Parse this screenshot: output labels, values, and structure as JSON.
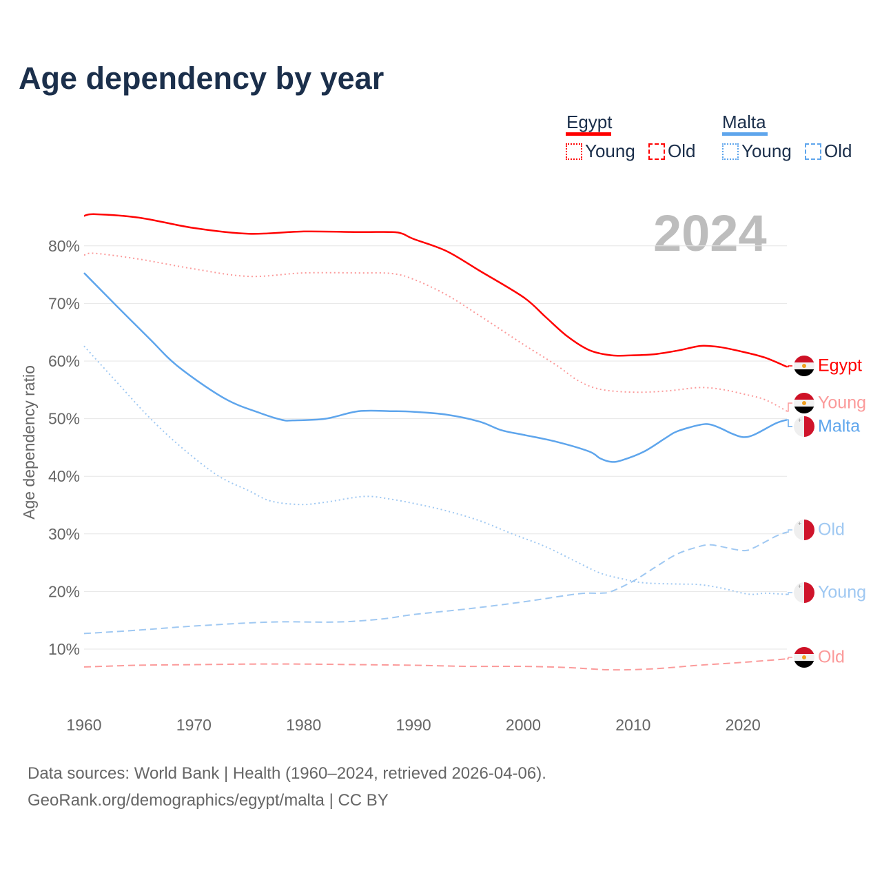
{
  "chart_data": {
    "type": "line",
    "title": "Age dependency by year",
    "highlight_year": "2024",
    "ylabel": "Age dependency ratio",
    "xlabel": "",
    "xlim": [
      1960,
      2024
    ],
    "ylim": [
      0,
      85
    ],
    "yticks": [
      10,
      20,
      30,
      40,
      50,
      60,
      70,
      80
    ],
    "ytick_labels": [
      "10%",
      "20%",
      "30%",
      "40%",
      "50%",
      "60%",
      "70%",
      "80%"
    ],
    "xticks": [
      1960,
      1970,
      1980,
      1990,
      2000,
      2010,
      2020
    ],
    "xtick_labels": [
      "1960",
      "1970",
      "1980",
      "1990",
      "2000",
      "2010",
      "2020"
    ],
    "grid": true,
    "legend": {
      "placement": "top-right",
      "groups": [
        {
          "country": "Egypt",
          "color": "#ff0000",
          "items": [
            "Young",
            "Old"
          ]
        },
        {
          "country": "Malta",
          "color": "#5ea5ec",
          "items": [
            "Young",
            "Old"
          ]
        }
      ]
    },
    "series": [
      {
        "name": "Egypt",
        "label": "Egypt",
        "country": "Egypt",
        "kind": "total",
        "color": "#ff0000",
        "dash": "solid",
        "x": [
          1960,
          1961,
          1965,
          1970,
          1975,
          1980,
          1985,
          1988,
          1989,
          1990,
          1993,
          1996,
          2000,
          2002,
          2004,
          2006,
          2008,
          2010,
          2012,
          2014,
          2016,
          2017,
          2018,
          2020,
          2022,
          2024
        ],
        "y": [
          85.2,
          85.5,
          84.9,
          83.1,
          82.1,
          82.5,
          82.4,
          82.4,
          82.1,
          81.2,
          79.1,
          75.7,
          71.1,
          67.7,
          64.3,
          61.9,
          61.0,
          61.0,
          61.2,
          61.8,
          62.6,
          62.6,
          62.4,
          61.6,
          60.6,
          59.0
        ]
      },
      {
        "name": "Egypt Young",
        "label": "Young",
        "country": "Egypt",
        "kind": "young",
        "color": "#fb9a9a",
        "dash": "dotted",
        "x": [
          1960,
          1961,
          1965,
          1970,
          1975,
          1980,
          1985,
          1988,
          1990,
          1993,
          1996,
          2000,
          2003,
          2005,
          2007,
          2010,
          2013,
          2016,
          2018,
          2020,
          2022,
          2024
        ],
        "y": [
          78.4,
          78.7,
          77.7,
          76.0,
          74.7,
          75.3,
          75.3,
          75.2,
          74.2,
          71.5,
          67.9,
          62.9,
          59.3,
          56.6,
          55.1,
          54.6,
          54.8,
          55.4,
          55.1,
          54.3,
          53.3,
          51.3
        ]
      },
      {
        "name": "Egypt Old",
        "label": "Old",
        "country": "Egypt",
        "kind": "old",
        "color": "#fb9a9a",
        "dash": "dashed",
        "x": [
          1960,
          1965,
          1970,
          1975,
          1980,
          1985,
          1990,
          1995,
          2000,
          2004,
          2008,
          2012,
          2016,
          2020,
          2024
        ],
        "y": [
          6.9,
          7.2,
          7.3,
          7.4,
          7.4,
          7.3,
          7.2,
          7.0,
          7.0,
          6.8,
          6.4,
          6.6,
          7.2,
          7.7,
          8.3
        ]
      },
      {
        "name": "Malta",
        "label": "Malta",
        "country": "Malta",
        "kind": "total",
        "color": "#5ea5ec",
        "dash": "solid",
        "x": [
          1960,
          1963,
          1966,
          1968.6,
          1972.8,
          1976,
          1978,
          1979,
          1982,
          1985,
          1988,
          1990,
          1993,
          1996,
          1998,
          2000,
          2003,
          2006,
          2007,
          2008,
          2009,
          2011,
          2013,
          2014,
          2016,
          2017,
          2018,
          2019,
          2020,
          2021,
          2023,
          2024
        ],
        "y": [
          75.3,
          69.5,
          63.8,
          59.0,
          53.5,
          51.0,
          49.8,
          49.7,
          50.0,
          51.3,
          51.3,
          51.2,
          50.7,
          49.5,
          48.0,
          47.2,
          46.0,
          44.3,
          43.1,
          42.5,
          42.8,
          44.3,
          46.7,
          47.8,
          48.9,
          49.0,
          48.3,
          47.4,
          46.8,
          47.2,
          49.2,
          49.8
        ]
      },
      {
        "name": "Malta Young",
        "label": "Young",
        "country": "Malta",
        "kind": "young",
        "color": "#9fc8f2",
        "dash": "dotted",
        "x": [
          1960,
          1963,
          1966,
          1969,
          1972.2,
          1975,
          1977,
          1979.7,
          1982,
          1985.5,
          1988,
          1990.5,
          1993,
          1996,
          1999,
          2002,
          2005,
          2007,
          2009,
          2011,
          2014,
          2016,
          2018,
          2020,
          2021,
          2022,
          2024
        ],
        "y": [
          62.6,
          56.3,
          50.1,
          44.8,
          40.1,
          37.5,
          35.7,
          35.1,
          35.5,
          36.5,
          36.0,
          35.1,
          34.0,
          32.3,
          30.0,
          27.8,
          25.0,
          23.2,
          22.2,
          21.5,
          21.3,
          21.2,
          20.6,
          19.7,
          19.5,
          19.7,
          19.5
        ]
      },
      {
        "name": "Malta Old",
        "label": "Old",
        "country": "Malta",
        "kind": "old",
        "color": "#9fc8f2",
        "dash": "dashed",
        "x": [
          1960,
          1965,
          1970,
          1977,
          1983,
          1987,
          1990,
          1995,
          2000,
          2005,
          2007,
          2008,
          2010,
          2012,
          2014,
          2016,
          2017,
          2018,
          2020,
          2021,
          2023,
          2024
        ],
        "y": [
          12.7,
          13.3,
          14.0,
          14.7,
          14.7,
          15.2,
          16.0,
          17.0,
          18.2,
          19.6,
          19.7,
          20.0,
          21.8,
          24.2,
          26.5,
          27.8,
          28.1,
          27.8,
          27.1,
          27.6,
          29.6,
          30.3
        ]
      }
    ]
  },
  "footer": {
    "source": "Data sources: World Bank | Health (1960–2024, retrieved 2026-04-06).",
    "credit": "GeoRank.org/demographics/egypt/malta | CC BY"
  }
}
